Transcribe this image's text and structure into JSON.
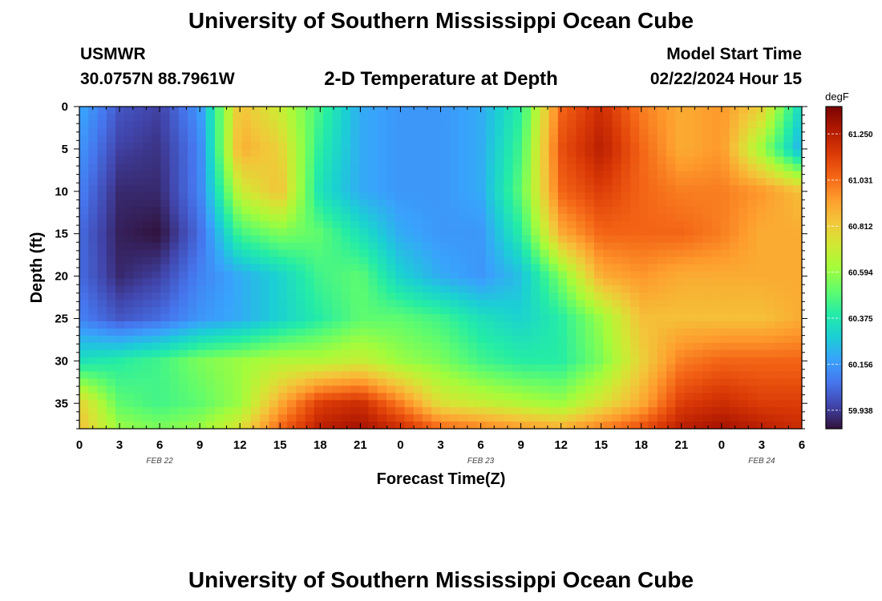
{
  "header": {
    "title": "University of Southern Mississippi Ocean Cube",
    "station": "USMWR",
    "coords": "30.0757N  88.7961W",
    "subtitle": "2-D Temperature at Depth",
    "start_label": "Model Start Time",
    "start_value": "02/22/2024 Hour 15"
  },
  "footer": {
    "title": "University of Southern Mississippi Ocean Cube"
  },
  "chart_data": {
    "type": "heatmap",
    "title": "2-D Temperature at Depth",
    "xlabel": "Forecast Time(Z)",
    "ylabel": "Depth (ft)",
    "xlim": [
      0,
      54
    ],
    "ylim": [
      38,
      0
    ],
    "x_tick_labels": [
      "0",
      "3",
      "6",
      "9",
      "12",
      "15",
      "18",
      "21",
      "0",
      "3",
      "6",
      "9",
      "12",
      "15",
      "18",
      "21",
      "0",
      "3",
      "6"
    ],
    "x_date_labels": [
      "FEB 22",
      "FEB 23",
      "FEB 24"
    ],
    "y_ticks": [
      0,
      5,
      10,
      15,
      20,
      25,
      30,
      35
    ],
    "colorbar": {
      "unit": "degF",
      "ticks": [
        61.25,
        61.031,
        60.812,
        60.594,
        60.375,
        60.156,
        59.938
      ],
      "tick_labels": [
        "61.250",
        "61.031",
        "60.812",
        "60.594",
        "60.375",
        "60.156",
        "59.938"
      ],
      "range": [
        59.85,
        61.38
      ],
      "colors": [
        "#30123b",
        "#4145ab",
        "#4675ed",
        "#39a2fc",
        "#1bcfd4",
        "#24eca6",
        "#61fc6c",
        "#a4fc3b",
        "#d1e834",
        "#f3c63a",
        "#fe9b2d",
        "#f36315",
        "#d93806",
        "#b11901",
        "#7a0402"
      ]
    },
    "grid_hours": [
      0,
      3,
      6,
      9,
      12,
      15,
      18,
      21,
      24,
      27,
      30,
      33,
      36,
      39,
      42,
      45,
      48,
      51,
      54
    ],
    "grid_depths": [
      0,
      5,
      10,
      15,
      20,
      25,
      30,
      35,
      38
    ],
    "values": [
      [
        60.2,
        60.0,
        59.95,
        60.15,
        60.85,
        60.7,
        60.45,
        60.2,
        60.15,
        60.15,
        60.2,
        60.4,
        61.05,
        61.2,
        61.0,
        60.9,
        60.95,
        60.8,
        60.3
      ],
      [
        60.15,
        59.95,
        59.92,
        60.1,
        60.9,
        60.8,
        60.4,
        60.2,
        60.15,
        60.15,
        60.2,
        60.45,
        61.1,
        61.25,
        61.05,
        60.9,
        60.95,
        60.6,
        60.2
      ],
      [
        60.1,
        59.9,
        59.9,
        60.1,
        60.7,
        60.85,
        60.35,
        60.2,
        60.15,
        60.15,
        60.2,
        60.5,
        61.05,
        61.15,
        61.05,
        61.0,
        61.0,
        60.95,
        60.85
      ],
      [
        60.05,
        59.88,
        59.85,
        60.05,
        60.45,
        60.55,
        60.5,
        60.35,
        60.2,
        60.15,
        60.15,
        60.4,
        60.9,
        61.05,
        61.05,
        61.05,
        61.0,
        60.9,
        60.9
      ],
      [
        60.05,
        59.9,
        59.95,
        60.1,
        60.2,
        60.3,
        60.45,
        60.5,
        60.3,
        60.2,
        60.15,
        60.25,
        60.55,
        60.9,
        60.95,
        60.9,
        60.9,
        60.9,
        60.9
      ],
      [
        60.1,
        60.0,
        60.05,
        60.15,
        60.2,
        60.3,
        60.4,
        60.5,
        60.5,
        60.45,
        60.35,
        60.3,
        60.4,
        60.6,
        60.85,
        60.85,
        60.85,
        60.85,
        60.9
      ],
      [
        60.35,
        60.4,
        60.45,
        60.55,
        60.6,
        60.65,
        60.65,
        60.7,
        60.6,
        60.55,
        60.45,
        60.4,
        60.4,
        60.55,
        60.8,
        61.0,
        61.05,
        61.05,
        61.05
      ],
      [
        60.8,
        60.5,
        60.45,
        60.5,
        60.6,
        60.9,
        61.15,
        61.2,
        61.0,
        60.75,
        60.7,
        60.65,
        60.6,
        60.75,
        60.9,
        61.15,
        61.2,
        61.15,
        61.15
      ],
      [
        60.85,
        60.6,
        60.55,
        60.6,
        60.75,
        61.05,
        61.25,
        61.3,
        61.2,
        61.05,
        61.0,
        60.95,
        60.9,
        61.0,
        61.1,
        61.25,
        61.3,
        61.25,
        61.2
      ]
    ]
  }
}
